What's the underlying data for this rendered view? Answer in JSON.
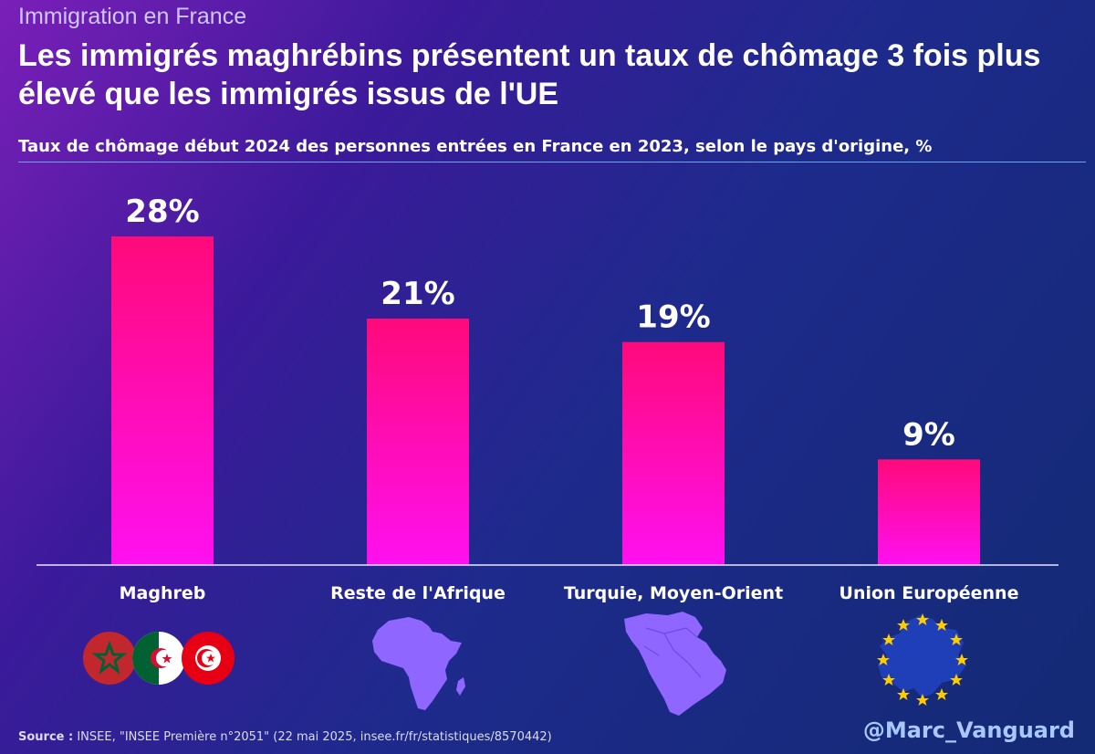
{
  "kicker": "Immigration en France",
  "title": "Les immigrés maghrébins présentent un taux de chômage 3 fois plus élevé que les immigrés issus de l'UE",
  "chart_data": {
    "type": "bar",
    "title": "Les immigrés maghrébins présentent un taux de chômage 3 fois plus élevé que les immigrés issus de l'UE",
    "subtitle": "Taux de chômage début 2024 des personnes entrées en France en 2023, selon le pays d'origine, %",
    "categories": [
      "Maghreb",
      "Reste de l'Afrique",
      "Turquie, Moyen-Orient",
      "Union Européenne"
    ],
    "values": [
      28,
      21,
      19,
      9
    ],
    "value_labels": [
      "28%",
      "21%",
      "19%",
      "9%"
    ],
    "ylim": [
      0,
      28
    ],
    "grid": false,
    "legend": "none",
    "bar_color_top": "#ff0a7a",
    "bar_color_bottom": "#ff10f0"
  },
  "icons": [
    "maghreb-flags-icon",
    "africa-map-icon",
    "middle-east-map-icon",
    "eu-map-icon"
  ],
  "source": {
    "label": "Source :",
    "text": " INSEE, \"INSEE Première n°2051\" (22 mai 2025, insee.fr/fr/statistiques/8570442)"
  },
  "handle": "@Marc_Vanguard"
}
